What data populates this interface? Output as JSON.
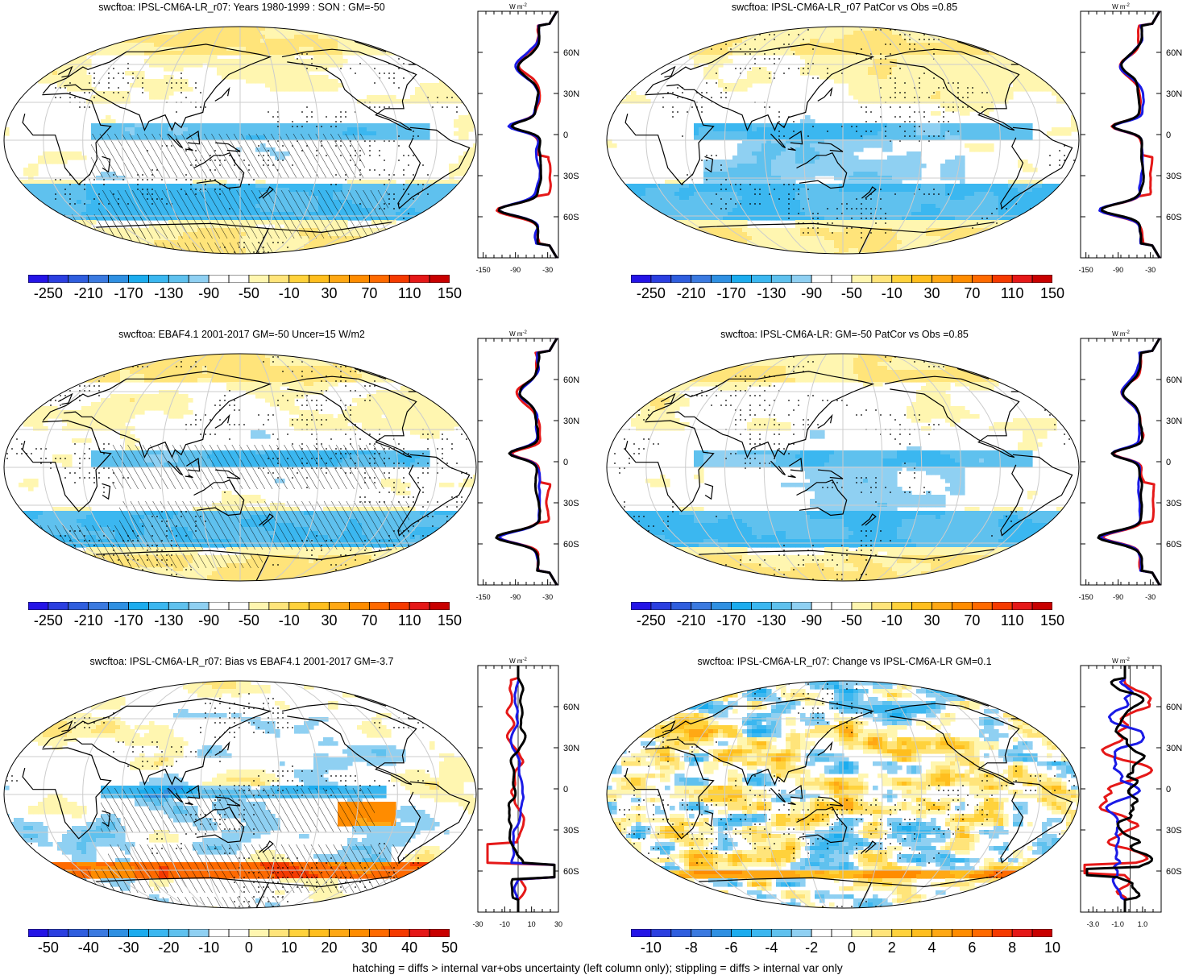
{
  "footnote": "hatching = diffs > internal var+obs uncertainty (left column only); stippling = diffs > internal var only",
  "colors": {
    "palette": [
      "#2414e6",
      "#2b3fe0",
      "#2f5ede",
      "#3b7ae0",
      "#2f90e2",
      "#1cacee",
      "#3bb7f0",
      "#5fc1ee",
      "#8fd0f2",
      "#ffffff",
      "#ffffff",
      "#fff6b0",
      "#ffe47a",
      "#ffd23c",
      "#ffbe1e",
      "#ffa814",
      "#ff8c00",
      "#ff6a00",
      "#f53a00",
      "#e51818",
      "#c80000"
    ],
    "coast": "#000000",
    "grid": "#cccccc",
    "model_line": "#e51818",
    "obs_line": "#1a1ae6",
    "ref_line": "#000000"
  },
  "panels": [
    {
      "id": "p1",
      "title": "swcftoa: IPSL-CM6A-LR_r07: Years 1980-1999 : SON : GM=-50",
      "map_kind": "abs",
      "colorbar_labels": [
        "-250",
        "-210",
        "-170",
        "-130",
        "-90",
        "-50",
        "-10",
        "30",
        "70",
        "110",
        "150"
      ],
      "zonal": {
        "units": "W m",
        "units_sup": "-2",
        "x_tick_labels": [
          "-150",
          "-90",
          "-30"
        ],
        "x_range": [
          -160,
          -10
        ],
        "y_tick_labels": [
          "60N",
          "30N",
          "0",
          "30S",
          "60S"
        ]
      }
    },
    {
      "id": "p2",
      "title": "swcftoa: IPSL-CM6A-LR_r07 PatCor vs Obs =0.85",
      "map_kind": "abs",
      "colorbar_labels": [
        "-250",
        "-210",
        "-170",
        "-130",
        "-90",
        "-50",
        "-10",
        "30",
        "70",
        "110",
        "150"
      ],
      "zonal": {
        "units": "W m",
        "units_sup": "-2",
        "x_tick_labels": [
          "-150",
          "-90",
          "-30"
        ],
        "x_range": [
          -160,
          -10
        ],
        "y_tick_labels": [
          "60N",
          "30N",
          "0",
          "30S",
          "60S"
        ]
      }
    },
    {
      "id": "p3",
      "title": "swcftoa: EBAF4.1 2001-2017 GM=-50 Uncer=15 W/m2",
      "map_kind": "abs",
      "colorbar_labels": [
        "-250",
        "-210",
        "-170",
        "-130",
        "-90",
        "-50",
        "-10",
        "30",
        "70",
        "110",
        "150"
      ],
      "zonal": {
        "units": "W m",
        "units_sup": "-2",
        "x_tick_labels": [
          "-150",
          "-90",
          "-30"
        ],
        "x_range": [
          -160,
          -10
        ],
        "y_tick_labels": [
          "60N",
          "30N",
          "0",
          "30S",
          "60S"
        ]
      }
    },
    {
      "id": "p4",
      "title": "swcftoa: IPSL-CM6A-LR: GM=-50 PatCor vs Obs =0.85",
      "map_kind": "abs",
      "colorbar_labels": [
        "-250",
        "-210",
        "-170",
        "-130",
        "-90",
        "-50",
        "-10",
        "30",
        "70",
        "110",
        "150"
      ],
      "zonal": {
        "units": "W m",
        "units_sup": "-2",
        "x_tick_labels": [
          "-150",
          "-90",
          "-30"
        ],
        "x_range": [
          -160,
          -10
        ],
        "y_tick_labels": [
          "60N",
          "30N",
          "0",
          "30S",
          "60S"
        ]
      }
    },
    {
      "id": "p5",
      "title": "swcftoa: IPSL-CM6A-LR_r07: Bias vs EBAF4.1 2001-2017  GM=-3.7",
      "map_kind": "bias",
      "colorbar_labels": [
        "-50",
        "-40",
        "-30",
        "-20",
        "-10",
        "0",
        "10",
        "20",
        "30",
        "40",
        "50"
      ],
      "zonal": {
        "units": "W m",
        "units_sup": "-2",
        "x_tick_labels": [
          "-30",
          "-10",
          "10",
          "30"
        ],
        "x_range": [
          -30,
          30
        ],
        "y_tick_labels": [
          "60N",
          "30N",
          "0",
          "30S",
          "60S"
        ]
      }
    },
    {
      "id": "p6",
      "title": "swcftoa: IPSL-CM6A-LR_r07: Change vs IPSL-CM6A-LR GM=0.1",
      "map_kind": "change",
      "colorbar_labels": [
        "-10",
        "-8",
        "-6",
        "-4",
        "-2",
        "0",
        "2",
        "4",
        "6",
        "8",
        "10"
      ],
      "zonal": {
        "units": "W m",
        "units_sup": "-2",
        "x_tick_labels": [
          "-3.0",
          "-1.0",
          "1.0"
        ],
        "x_range": [
          -4,
          2.5
        ],
        "y_tick_labels": [
          "60N",
          "30N",
          "0",
          "30S",
          "60S"
        ]
      }
    }
  ]
}
